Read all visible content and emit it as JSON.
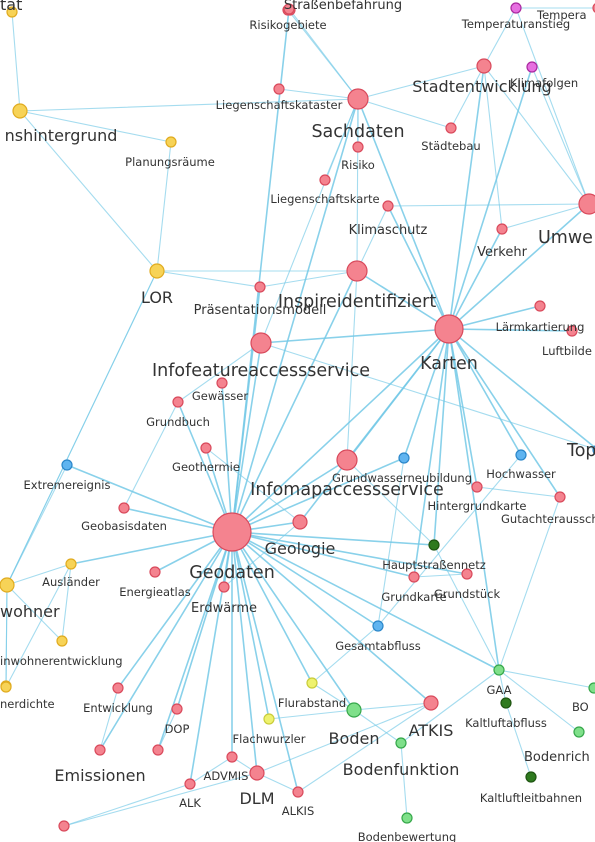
{
  "colors": {
    "red": "#f4838f",
    "red_stroke": "#d94a5c",
    "yellow": "#f7d357",
    "yellow_stroke": "#e0ab1f",
    "blue": "#5fb4f0",
    "blue_stroke": "#2b86c9",
    "green": "#7fe08a",
    "green_stroke": "#36a74a",
    "darkgreen": "#2f7a1f",
    "darkgreen_stroke": "#1f5512",
    "magenta": "#e66fe0",
    "magenta_stroke": "#a9289f",
    "lime": "#eef26e",
    "lime_stroke": "#c9cc3a",
    "edge": "#74c9e6"
  },
  "nodes": [
    {
      "id": "stat",
      "label": "tät",
      "color": "yellow",
      "size": "xs",
      "lsize": "l"
    },
    {
      "id": "strassenbefahrung",
      "label": "Straßenbefahrung",
      "color": "red",
      "size": "xs",
      "lsize": "m"
    },
    {
      "id": "risikogebiete",
      "label": "Risikogebiete",
      "color": "red",
      "size": "xs",
      "lsize": "s"
    },
    {
      "id": "temperatur",
      "label": "Tempera",
      "color": "red",
      "size": "xs",
      "lsize": "s"
    },
    {
      "id": "temperaturanstieg",
      "label": "Temperaturanstieg",
      "color": "magenta",
      "size": "xs",
      "lsize": "s"
    },
    {
      "id": "stadtentwicklung",
      "label": "Stadtentwicklung",
      "color": "red",
      "size": "s",
      "lsize": "l"
    },
    {
      "id": "klimafolgen",
      "label": "Klimafolgen",
      "color": "magenta",
      "size": "xs",
      "lsize": "s"
    },
    {
      "id": "liegenschaftskataster",
      "label": "Liegenschaftskataster",
      "color": "red",
      "size": "xs",
      "lsize": "s"
    },
    {
      "id": "sachdaten",
      "label": "Sachdaten",
      "color": "red",
      "size": "m",
      "lsize": "xl"
    },
    {
      "id": "migrationshintergrund",
      "label": "nshintergrund",
      "color": "yellow",
      "size": "s",
      "lsize": "l"
    },
    {
      "id": "planungsraeume",
      "label": "Planungsräume",
      "color": "yellow",
      "size": "xs",
      "lsize": "s"
    },
    {
      "id": "risiko",
      "label": "Risiko",
      "color": "red",
      "size": "xs",
      "lsize": "s"
    },
    {
      "id": "staedtebau",
      "label": "Städtebau",
      "color": "red",
      "size": "xs",
      "lsize": "s"
    },
    {
      "id": "liegenschaftskarte",
      "label": "Liegenschaftskarte",
      "color": "red",
      "size": "xs",
      "lsize": "s"
    },
    {
      "id": "klimaschutz",
      "label": "Klimaschutz",
      "color": "red",
      "size": "xs",
      "lsize": "m"
    },
    {
      "id": "umwelt",
      "label": "Umwe",
      "color": "red",
      "size": "m",
      "lsize": "xl"
    },
    {
      "id": "verkehr",
      "label": "Verkehr",
      "color": "red",
      "size": "xs",
      "lsize": "m"
    },
    {
      "id": "lor",
      "label": "LOR",
      "color": "yellow",
      "size": "s",
      "lsize": "l"
    },
    {
      "id": "inspireidentifiziert",
      "label": "Inspireidentifiziert",
      "color": "red",
      "size": "m",
      "lsize": "xl"
    },
    {
      "id": "praesentationsmodell",
      "label": "Präsentationsmodell",
      "color": "red",
      "size": "xs",
      "lsize": "m"
    },
    {
      "id": "laermkartierung",
      "label": "Lärmkartierung",
      "color": "red",
      "size": "xs",
      "lsize": "s"
    },
    {
      "id": "karten",
      "label": "Karten",
      "color": "red",
      "size": "l",
      "lsize": "xl"
    },
    {
      "id": "luftbilder",
      "label": "Luftbilde",
      "color": "red",
      "size": "xs",
      "lsize": "s"
    },
    {
      "id": "infofeatureaccessservice",
      "label": "Infofeatureaccessservice",
      "color": "red",
      "size": "m",
      "lsize": "xl"
    },
    {
      "id": "gewaesser",
      "label": "Gewässer",
      "color": "red",
      "size": "xs",
      "lsize": "s"
    },
    {
      "id": "grundbuch",
      "label": "Grundbuch",
      "color": "red",
      "size": "xs",
      "lsize": "s"
    },
    {
      "id": "topographie",
      "label": "Top",
      "color": "blue",
      "size": "xs",
      "lsize": "xl"
    },
    {
      "id": "geothermie",
      "label": "Geothermie",
      "color": "red",
      "size": "xs",
      "lsize": "s"
    },
    {
      "id": "grundwasserneubildung",
      "label": "Grundwasserneubildung",
      "color": "blue",
      "size": "xs",
      "lsize": "s"
    },
    {
      "id": "hochwasser",
      "label": "Hochwasser",
      "color": "blue",
      "size": "xs",
      "lsize": "s"
    },
    {
      "id": "extremereignis",
      "label": "Extremereignis",
      "color": "blue",
      "size": "xs",
      "lsize": "s"
    },
    {
      "id": "infomapaccessservice",
      "label": "Infomapaccessservice",
      "color": "red",
      "size": "m",
      "lsize": "xl"
    },
    {
      "id": "hintergrundkarte",
      "label": "Hintergrundkarte",
      "color": "red",
      "size": "xs",
      "lsize": "s"
    },
    {
      "id": "gutachterausschuss",
      "label": "Gutachterausschu",
      "color": "red",
      "size": "xs",
      "lsize": "s"
    },
    {
      "id": "geobasisdaten",
      "label": "Geobasisdaten",
      "color": "red",
      "size": "xs",
      "lsize": "s"
    },
    {
      "id": "geodaten",
      "label": "Geodaten",
      "color": "red",
      "size": "xl",
      "lsize": "xl"
    },
    {
      "id": "geologie",
      "label": "Geologie",
      "color": "red",
      "size": "s",
      "lsize": "l"
    },
    {
      "id": "hauptstrassennetz",
      "label": "Hauptstraßennetz",
      "color": "darkgreen",
      "size": "xs",
      "lsize": "s"
    },
    {
      "id": "auslaender",
      "label": "Ausländer",
      "color": "yellow",
      "size": "xs",
      "lsize": "s"
    },
    {
      "id": "einwohner",
      "label": "wohner",
      "color": "yellow",
      "size": "s",
      "lsize": "l"
    },
    {
      "id": "energieatlas",
      "label": "Energieatlas",
      "color": "red",
      "size": "xs",
      "lsize": "s"
    },
    {
      "id": "grundkarte",
      "label": "Grundkarte",
      "color": "red",
      "size": "xs",
      "lsize": "s"
    },
    {
      "id": "grundstueck",
      "label": "Grundstück",
      "color": "red",
      "size": "xs",
      "lsize": "s"
    },
    {
      "id": "erdwaerme",
      "label": "Erdwärme",
      "color": "red",
      "size": "xs",
      "lsize": "m"
    },
    {
      "id": "gesamtabfluss",
      "label": "Gesamtabfluss",
      "color": "blue",
      "size": "xs",
      "lsize": "s"
    },
    {
      "id": "einwohnerentwicklung",
      "label": "inwohnerentwicklung",
      "color": "yellow",
      "size": "xs",
      "lsize": "s"
    },
    {
      "id": "einwohnerdichte",
      "label": "nerdichte",
      "color": "yellow",
      "size": "xs",
      "lsize": "s"
    },
    {
      "id": "gaa",
      "label": "GAA",
      "color": "green",
      "size": "xs",
      "lsize": "s"
    },
    {
      "id": "bodenrichtwerte",
      "label": "BO",
      "color": "green",
      "size": "xs",
      "lsize": "s"
    },
    {
      "id": "entwicklung",
      "label": "Entwicklung",
      "color": "red",
      "size": "xs",
      "lsize": "s"
    },
    {
      "id": "dop",
      "label": "DOP",
      "color": "red",
      "size": "xs",
      "lsize": "s"
    },
    {
      "id": "flurabstand",
      "label": "Flurabstand",
      "color": "lime",
      "size": "xs",
      "lsize": "s"
    },
    {
      "id": "atkis",
      "label": "ATKIS",
      "color": "red",
      "size": "s",
      "lsize": "l"
    },
    {
      "id": "kaltluftabfluss",
      "label": "Kaltluftabfluss",
      "color": "darkgreen",
      "size": "xs",
      "lsize": "s"
    },
    {
      "id": "flachwurzler",
      "label": "Flachwurzler",
      "color": "lime",
      "size": "xs",
      "lsize": "s"
    },
    {
      "id": "boden",
      "label": "Boden",
      "color": "green",
      "size": "s",
      "lsize": "l"
    },
    {
      "id": "bodenrich",
      "label": "Bodenrich",
      "color": "green",
      "size": "xs",
      "lsize": "m"
    },
    {
      "id": "emissionen",
      "label": "Emissionen",
      "color": "red",
      "size": "xs",
      "lsize": "l"
    },
    {
      "id": "advmis",
      "label": "ADVMIS",
      "color": "red",
      "size": "xs",
      "lsize": "s"
    },
    {
      "id": "bodenfunktion",
      "label": "Bodenfunktion",
      "color": "green",
      "size": "xs",
      "lsize": "l"
    },
    {
      "id": "alk",
      "label": "ALK",
      "color": "red",
      "size": "xs",
      "lsize": "s"
    },
    {
      "id": "dlm",
      "label": "DLM",
      "color": "red",
      "size": "s",
      "lsize": "l"
    },
    {
      "id": "alkis",
      "label": "ALKIS",
      "color": "red",
      "size": "xs",
      "lsize": "s"
    },
    {
      "id": "kaltluftleitbahnen",
      "label": "Kaltluftleitbahnen",
      "color": "darkgreen",
      "size": "xs",
      "lsize": "s"
    },
    {
      "id": "bodenbewertung",
      "label": "Bodenbewertung",
      "color": "green",
      "size": "xs",
      "lsize": "s"
    },
    {
      "id": "anon1",
      "label": "",
      "color": "red",
      "size": "xs",
      "lsize": "s"
    },
    {
      "id": "anon2",
      "label": "",
      "color": "red",
      "size": "xs",
      "lsize": "s"
    },
    {
      "id": "anon3",
      "label": "",
      "color": "red",
      "size": "xs",
      "lsize": "s"
    },
    {
      "id": "anon4",
      "label": "",
      "color": "yellow",
      "size": "xs",
      "lsize": "s"
    }
  ],
  "edges": [
    [
      "geodaten",
      "infomapaccessservice"
    ],
    [
      "geodaten",
      "infofeatureaccessservice"
    ],
    [
      "geodaten",
      "karten"
    ],
    [
      "geodaten",
      "inspireidentifiziert"
    ],
    [
      "geodaten",
      "sachdaten"
    ],
    [
      "geodaten",
      "geologie"
    ],
    [
      "geodaten",
      "geobasisdaten"
    ],
    [
      "geodaten",
      "energieatlas"
    ],
    [
      "geodaten",
      "erdwaerme"
    ],
    [
      "geodaten",
      "entwicklung"
    ],
    [
      "geodaten",
      "emissionen"
    ],
    [
      "geodaten",
      "dop"
    ],
    [
      "geodaten",
      "advmis"
    ],
    [
      "geodaten",
      "alk"
    ],
    [
      "geodaten",
      "dlm"
    ],
    [
      "geodaten",
      "alkis"
    ],
    [
      "geodaten",
      "atkis"
    ],
    [
      "geodaten",
      "hauptstrassennetz"
    ],
    [
      "geodaten",
      "grundkarte"
    ],
    [
      "geodaten",
      "grundstueck"
    ],
    [
      "geodaten",
      "gesamtabfluss"
    ],
    [
      "geodaten",
      "grundbuch"
    ],
    [
      "geodaten",
      "geothermie"
    ],
    [
      "geodaten",
      "gewaesser"
    ],
    [
      "geodaten",
      "extremereignis"
    ],
    [
      "geodaten",
      "auslaender"
    ],
    [
      "geodaten",
      "gaa"
    ],
    [
      "geodaten",
      "boden"
    ],
    [
      "geodaten",
      "flurabstand"
    ],
    [
      "geodaten",
      "flachwurzler"
    ],
    [
      "geodaten",
      "anon1"
    ],
    [
      "geodaten",
      "praesentationsmodell"
    ],
    [
      "geodaten",
      "anon3"
    ],
    [
      "geodaten",
      "grundwasserneubildung"
    ],
    [
      "karten",
      "inspireidentifiziert"
    ],
    [
      "karten",
      "infomapaccessservice"
    ],
    [
      "karten",
      "infofeatureaccessservice"
    ],
    [
      "karten",
      "umwelt"
    ],
    [
      "karten",
      "laermkartierung"
    ],
    [
      "karten",
      "luftbilder"
    ],
    [
      "karten",
      "hintergrundkarte"
    ],
    [
      "karten",
      "gutachterausschuss"
    ],
    [
      "karten",
      "grundkarte"
    ],
    [
      "karten",
      "hochwasser"
    ],
    [
      "karten",
      "gaa"
    ],
    [
      "karten",
      "stadtentwicklung"
    ],
    [
      "karten",
      "topographie"
    ],
    [
      "karten",
      "geologie"
    ],
    [
      "karten",
      "hauptstrassennetz"
    ],
    [
      "karten",
      "grundwasserneubildung"
    ],
    [
      "karten",
      "klimaschutz"
    ],
    [
      "karten",
      "verkehr"
    ],
    [
      "karten",
      "sachdaten"
    ],
    [
      "sachdaten",
      "liegenschaftskataster"
    ],
    [
      "sachdaten",
      "strassenbefahrung"
    ],
    [
      "sachdaten",
      "stadtentwicklung"
    ],
    [
      "sachdaten",
      "staedtebau"
    ],
    [
      "sachdaten",
      "risiko"
    ],
    [
      "sachdaten",
      "liegenschaftskarte"
    ],
    [
      "sachdaten",
      "inspireidentifiziert"
    ],
    [
      "sachdaten",
      "infofeatureaccessservice"
    ],
    [
      "sachdaten",
      "risikogebiete"
    ],
    [
      "inspireidentifiziert",
      "praesentationsmodell"
    ],
    [
      "inspireidentifiziert",
      "lor"
    ],
    [
      "inspireidentifiziert",
      "infomapaccessservice"
    ],
    [
      "inspireidentifiziert",
      "klimaschutz"
    ],
    [
      "infofeatureaccessservice",
      "topographie"
    ],
    [
      "infofeatureaccessservice",
      "grundbuch"
    ],
    [
      "lor",
      "planungsraeume"
    ],
    [
      "lor",
      "migrationshintergrund"
    ],
    [
      "lor",
      "einwohner"
    ],
    [
      "lor",
      "praesentationsmodell"
    ],
    [
      "migrationshintergrund",
      "planungsraeume"
    ],
    [
      "migrationshintergrund",
      "stat"
    ],
    [
      "migrationshintergrund",
      "sachdaten"
    ],
    [
      "einwohner",
      "auslaender"
    ],
    [
      "einwohner",
      "einwohnerentwicklung"
    ],
    [
      "einwohner",
      "einwohnerdichte"
    ],
    [
      "einwohner",
      "extremereignis"
    ],
    [
      "einwohner",
      "lor"
    ],
    [
      "umwelt",
      "temperaturanstieg"
    ],
    [
      "umwelt",
      "verkehr"
    ],
    [
      "umwelt",
      "klimafolgen"
    ],
    [
      "umwelt",
      "stadtentwicklung"
    ],
    [
      "umwelt",
      "klimaschutz"
    ],
    [
      "stadtentwicklung",
      "temperaturanstieg"
    ],
    [
      "stadtentwicklung",
      "staedtebau"
    ],
    [
      "stadtentwicklung",
      "verkehr"
    ],
    [
      "temperaturanstieg",
      "temperatur"
    ],
    [
      "klimafolgen",
      "karten"
    ],
    [
      "boden",
      "bodenfunktion"
    ],
    [
      "boden",
      "atkis"
    ],
    [
      "boden",
      "flurabstand"
    ],
    [
      "boden",
      "flachwurzler"
    ],
    [
      "bodenfunktion",
      "bodenbewertung"
    ],
    [
      "gaa",
      "kaltluftabfluss"
    ],
    [
      "gaa",
      "bodenrichtwerte"
    ],
    [
      "gaa",
      "bodenrich"
    ],
    [
      "kaltluftabfluss",
      "kaltluftleitbahnen"
    ],
    [
      "gaa",
      "hauptstrassennetz"
    ],
    [
      "gutachterausschuss",
      "gaa"
    ],
    [
      "gutachterausschuss",
      "hintergrundkarte"
    ],
    [
      "hochwasser",
      "gesamtabfluss"
    ],
    [
      "grundwasserneubildung",
      "gesamtabfluss"
    ],
    [
      "dlm",
      "atkis"
    ],
    [
      "dlm",
      "advmis"
    ],
    [
      "dlm",
      "alkis"
    ],
    [
      "atkis",
      "alkis"
    ],
    [
      "advmis",
      "alk"
    ],
    [
      "emissionen",
      "entwicklung"
    ],
    [
      "geobasisdaten",
      "grundbuch"
    ],
    [
      "geologie",
      "geothermie"
    ],
    [
      "geologie",
      "erdwaerme"
    ],
    [
      "infomapaccessservice",
      "hauptstrassennetz"
    ],
    [
      "bodenfunktion",
      "gaa"
    ],
    [
      "dop",
      "anon3"
    ],
    [
      "grundstueck",
      "grundkarte"
    ],
    [
      "flurabstand",
      "gesamtabfluss"
    ],
    [
      "anon2",
      "dlm"
    ],
    [
      "anon2",
      "alk"
    ],
    [
      "anon4",
      "einwohner"
    ],
    [
      "anon4",
      "auslaender"
    ],
    [
      "einwohnerentwicklung",
      "auslaender"
    ]
  ]
}
